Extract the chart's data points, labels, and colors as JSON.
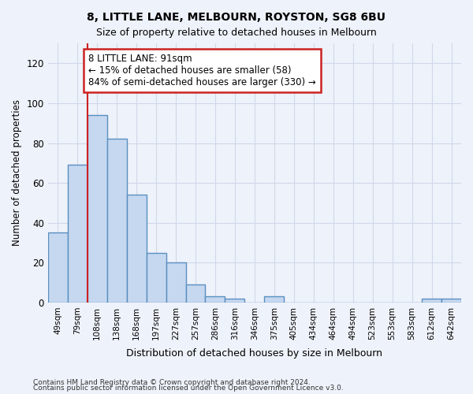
{
  "title": "8, LITTLE LANE, MELBOURN, ROYSTON, SG8 6BU",
  "subtitle": "Size of property relative to detached houses in Melbourn",
  "xlabel": "Distribution of detached houses by size in Melbourn",
  "ylabel": "Number of detached properties",
  "categories": [
    "49sqm",
    "79sqm",
    "108sqm",
    "138sqm",
    "168sqm",
    "197sqm",
    "227sqm",
    "257sqm",
    "286sqm",
    "316sqm",
    "346sqm",
    "375sqm",
    "405sqm",
    "434sqm",
    "464sqm",
    "494sqm",
    "523sqm",
    "553sqm",
    "583sqm",
    "612sqm",
    "642sqm"
  ],
  "values": [
    35,
    69,
    94,
    82,
    54,
    25,
    20,
    9,
    3,
    2,
    0,
    3,
    0,
    0,
    0,
    0,
    0,
    0,
    0,
    2,
    2
  ],
  "bar_color": "#c5d8f0",
  "bar_edge_color": "#5a8fc0",
  "bar_edge_width": 1.0,
  "ylim": [
    0,
    130
  ],
  "yticks": [
    0,
    20,
    40,
    60,
    80,
    100,
    120
  ],
  "red_line_x": 1.5,
  "annotation_text": "8 LITTLE LANE: 91sqm\n← 15% of detached houses are smaller (58)\n84% of semi-detached houses are larger (330) →",
  "annotation_box_facecolor": "#ffffff",
  "annotation_box_edgecolor": "#cc2222",
  "footer1": "Contains HM Land Registry data © Crown copyright and database right 2024.",
  "footer2": "Contains public sector information licensed under the Open Government Licence v3.0.",
  "grid_color": "#d0d8e8",
  "background_color": "#eef2fa"
}
